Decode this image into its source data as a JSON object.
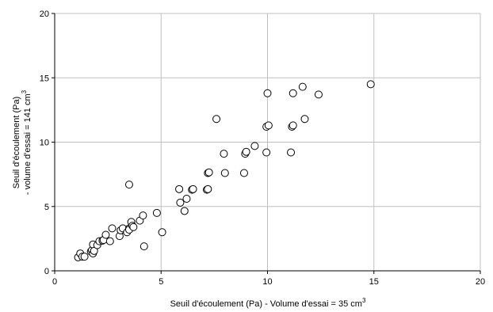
{
  "chart_data": {
    "type": "scatter",
    "title": "",
    "xlabel": "Seuil d'écoulement (Pa) - Volume d'essai = 35 cm",
    "xlabel_sup": "3",
    "ylabel_line1": "Seuil d'écoulement (Pa)",
    "ylabel_line2": "- volume d'essai = 141 cm",
    "ylabel_sup": "3",
    "xlim": [
      0,
      20
    ],
    "ylim": [
      0,
      20
    ],
    "xticks": [
      0,
      5,
      10,
      15,
      20
    ],
    "yticks": [
      0,
      5,
      10,
      15,
      20
    ],
    "grid": true,
    "marker": "open-circle",
    "series": [
      {
        "x": [
          1.1,
          1.2,
          1.3,
          1.4,
          1.7,
          1.75,
          1.8,
          1.8,
          1.85,
          2.0,
          2.1,
          2.25,
          2.3,
          2.4,
          2.6,
          2.7,
          3.05,
          3.1,
          3.2,
          3.4,
          3.5,
          3.5,
          3.6,
          3.65,
          3.7,
          4.0,
          4.15,
          4.2,
          4.8,
          5.05,
          5.85,
          5.9,
          6.1,
          6.2,
          6.45,
          6.5,
          7.15,
          7.2,
          7.2,
          7.25,
          7.6,
          7.95,
          8.0,
          8.9,
          8.95,
          9.0,
          9.4,
          9.95,
          9.95,
          10.0,
          10.05,
          11.1,
          11.15,
          11.2,
          11.2,
          11.65,
          11.75,
          12.4,
          14.85,
          3.5
        ],
        "y": [
          1.05,
          1.35,
          1.1,
          1.1,
          1.5,
          1.6,
          2.05,
          1.35,
          1.55,
          2.0,
          2.3,
          2.35,
          2.4,
          2.8,
          2.3,
          3.3,
          2.7,
          3.15,
          3.3,
          3.0,
          3.3,
          3.2,
          3.8,
          3.5,
          3.4,
          3.9,
          4.3,
          1.9,
          4.5,
          3.0,
          6.35,
          5.3,
          4.65,
          5.6,
          6.3,
          6.35,
          6.3,
          6.35,
          7.6,
          7.65,
          11.8,
          9.1,
          7.6,
          7.6,
          9.1,
          9.25,
          9.7,
          9.2,
          11.2,
          13.8,
          11.3,
          9.2,
          11.2,
          11.3,
          13.8,
          14.3,
          11.8,
          13.7,
          14.5,
          6.7
        ]
      }
    ]
  }
}
